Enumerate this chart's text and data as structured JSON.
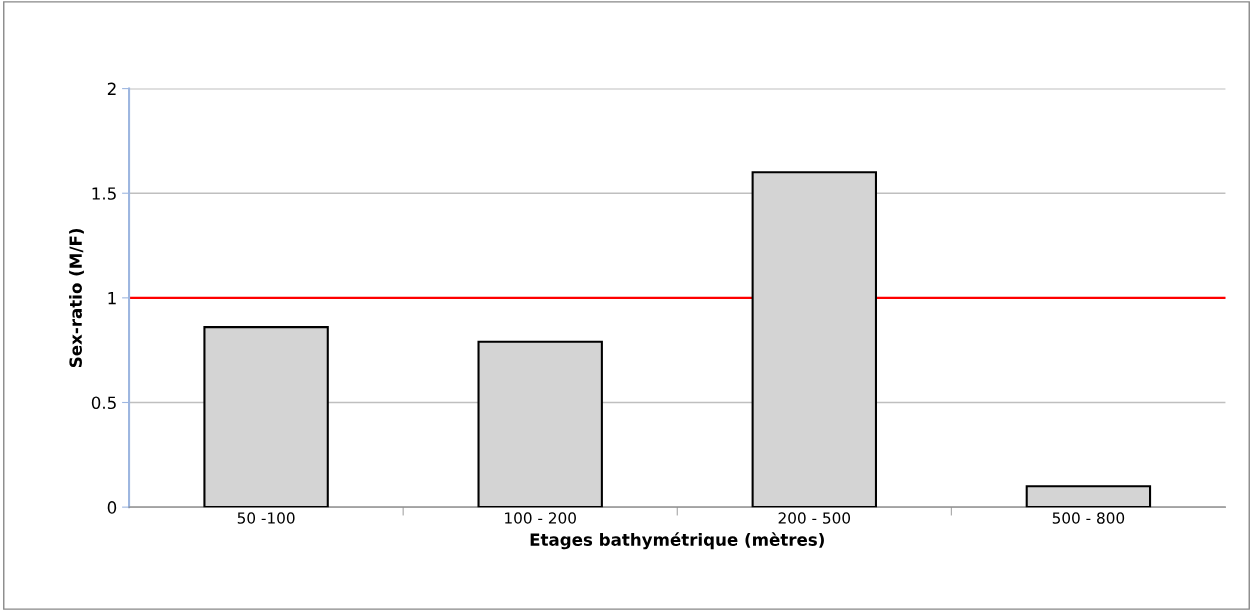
{
  "chart_data": {
    "type": "bar",
    "xlabel": "Etages bathymétrique (mètres)",
    "ylabel": "Sex-ratio (M/F)",
    "categories": [
      "50 -100",
      "100 - 200",
      "200 - 500",
      "500 - 800"
    ],
    "values": [
      0.86,
      0.79,
      1.6,
      0.1
    ],
    "color": "#d4d4d4",
    "ylim": [
      0,
      2
    ],
    "yticks": [
      0,
      0.5,
      1,
      1.5,
      2
    ],
    "grid": "y",
    "ref_lines": [
      {
        "axis": "y",
        "value": 1,
        "label": null,
        "color": "#ff0000",
        "line_style": "solid"
      }
    ]
  }
}
